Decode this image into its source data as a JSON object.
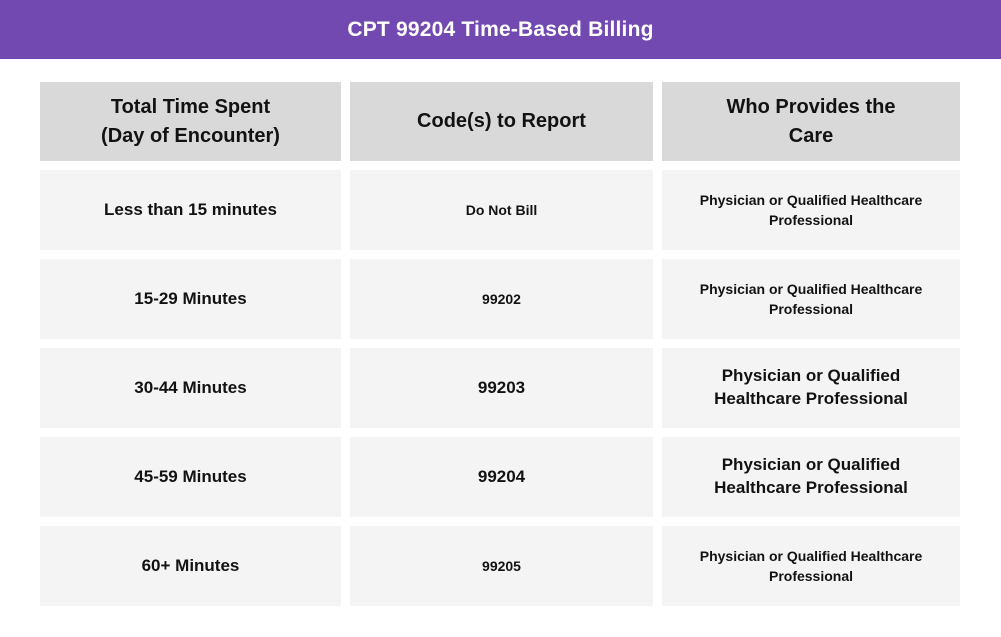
{
  "banner": {
    "title": "CPT 99204 Time-Based Billing"
  },
  "colors": {
    "banner_bg": "#7249b1",
    "banner_fg": "#ffffff",
    "header_cell_bg": "#d9d9d9",
    "row_cell_bg": "#f4f4f4",
    "text": "#121212"
  },
  "table": {
    "headers": [
      "Total Time Spent\n(Day of Encounter)",
      "Code(s) to Report",
      "Who Provides the\nCare"
    ],
    "rows": [
      {
        "time": "Less than 15 minutes",
        "code": "Do Not Bill",
        "provider": "Physician or Qualified Healthcare Professional"
      },
      {
        "time": "15-29 Minutes",
        "code": "99202",
        "provider": "Physician or Qualified Healthcare Professional"
      },
      {
        "time": "30-44 Minutes",
        "code": "99203",
        "provider": "Physician or Qualified Healthcare Professional"
      },
      {
        "time": "45-59 Minutes",
        "code": "99204",
        "provider": "Physician or Qualified Healthcare Professional"
      },
      {
        "time": "60+ Minutes",
        "code": "99205",
        "provider": "Physician or Qualified Healthcare Professional"
      }
    ]
  }
}
